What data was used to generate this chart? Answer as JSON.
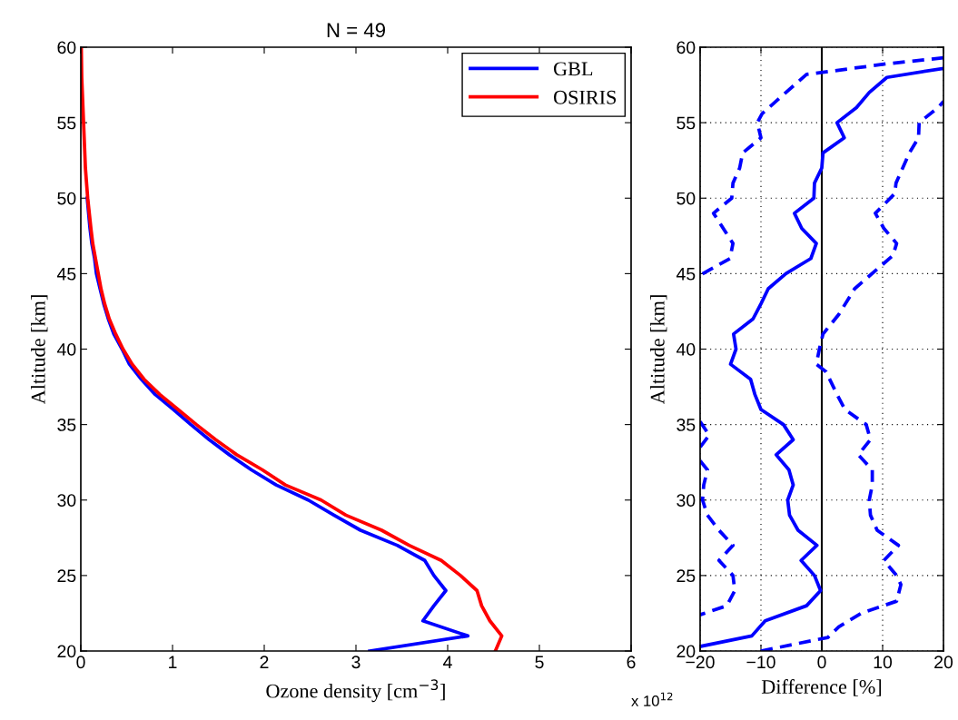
{
  "chart_data": [
    {
      "type": "line",
      "title": "N = 49",
      "xlabel": "Ozone density [cm$^{−3}$]",
      "ylabel": "Altitude [km]",
      "xlim": [
        0,
        6
      ],
      "xticks": [
        0,
        1,
        2,
        3,
        4,
        5,
        6
      ],
      "ylim": [
        20,
        60
      ],
      "yticks": [
        20,
        25,
        30,
        35,
        40,
        45,
        50,
        55,
        60
      ],
      "legend": "top right",
      "annotations": [
        "x 10$^{12}$"
      ],
      "series": [
        {
          "name": "GBL",
          "color": "#0000ff",
          "x": [
            3.15,
            4.22,
            3.73,
            3.85,
            3.98,
            3.85,
            3.75,
            3.45,
            3.05,
            2.76,
            2.48,
            2.13,
            1.86,
            1.62,
            1.4,
            1.2,
            1.01,
            0.81,
            0.66,
            0.53,
            0.45,
            0.36,
            0.3,
            0.25,
            0.21,
            0.17,
            0.15,
            0.12,
            0.1,
            0.07
          ],
          "values": [
            20,
            21,
            22,
            23,
            24,
            25,
            26,
            27,
            28,
            29,
            30,
            31,
            32,
            33,
            34,
            35,
            36,
            37,
            38,
            39,
            40,
            41,
            42,
            43,
            44,
            45,
            46,
            47,
            48,
            50
          ]
        },
        {
          "name": "OSIRIS",
          "color": "#ff0000",
          "x": [
            4.52,
            4.59,
            4.46,
            4.37,
            4.32,
            4.14,
            3.93,
            3.58,
            3.28,
            2.89,
            2.62,
            2.23,
            1.98,
            1.7,
            1.47,
            1.26,
            1.06,
            0.86,
            0.69,
            0.56,
            0.46,
            0.38,
            0.31,
            0.26,
            0.22,
            0.19,
            0.16,
            0.13,
            0.11,
            0.075,
            0.05,
            0.03,
            0.01,
            0.005
          ],
          "values": [
            20,
            21,
            22,
            23,
            24,
            25,
            26,
            27,
            28,
            29,
            30,
            31,
            32,
            33,
            34,
            35,
            36,
            37,
            38,
            39,
            40,
            41,
            42,
            43,
            44,
            45,
            46,
            47,
            48,
            50,
            52,
            55,
            58,
            60
          ]
        }
      ]
    },
    {
      "type": "line",
      "xlabel": "Difference [%]",
      "ylabel": "Altitude [km]",
      "xlim": [
        -20,
        20
      ],
      "xticks": [
        {
          "value": -20,
          "label": "−20"
        },
        {
          "value": -10,
          "label": "−10"
        },
        0,
        10,
        20
      ],
      "ylim": [
        20,
        60
      ],
      "yticks": [
        20,
        25,
        30,
        35,
        40,
        45,
        50,
        55,
        60
      ],
      "grid": true,
      "ref_lines": [
        {
          "axis": "x",
          "value": 0,
          "color": "#000000"
        }
      ],
      "series": [
        {
          "color": "#0000ff",
          "line_style": "solid",
          "x": [
            -20,
            -11.5,
            -9.3,
            -2.5,
            -0.2,
            -1.2,
            -3.4,
            -0.8,
            -3.9,
            -5.3,
            -5.6,
            -4.7,
            -5.4,
            -7.5,
            -4.7,
            -6.3,
            -10,
            -11,
            -11.7,
            -15,
            -14.1,
            -14.5,
            -11.3,
            -10,
            -8.8,
            -5.9,
            -1.8,
            -0.9,
            -3.3,
            -4.5,
            -1.3,
            -1.2,
            0,
            0.2,
            3.7,
            2.5,
            5.7,
            7.8,
            10.7,
            20
          ],
          "values": [
            20.3,
            21,
            22,
            23,
            24,
            25,
            26,
            27,
            28,
            29,
            30,
            31,
            32,
            33,
            34,
            35,
            36,
            37,
            38,
            39,
            40,
            41,
            42,
            43,
            44,
            45,
            46,
            47,
            48,
            49,
            50,
            51,
            52,
            53,
            54,
            55,
            56,
            57,
            58,
            58.6
          ]
        },
        {
          "color": "#0000ff",
          "line_style": "dashed",
          "x": [
            20,
            10.7,
            -2.5,
            -5.9,
            -9.8,
            -10.6,
            -10,
            -13,
            -13.5,
            -14.6,
            -14.8,
            -17.8,
            -14.6,
            -15.1,
            -20,
            null,
            -20,
            -18.5,
            -20,
            null,
            -20,
            -18.8,
            -19.4,
            -19.6,
            -18.8,
            -16.9,
            -14.6,
            -16.9,
            -14.6,
            -14.3,
            -15.6,
            -20
          ],
          "values": [
            59.3,
            58.9,
            58.2,
            57,
            55.6,
            55,
            54,
            53,
            52,
            51,
            50,
            49,
            47,
            46,
            44.9,
            null,
            35.2,
            34.3,
            33.5,
            null,
            32.6,
            32,
            31,
            30,
            29,
            28,
            27,
            26,
            25,
            24,
            23,
            22.4
          ]
        },
        {
          "color": "#0000ff",
          "line_style": "dashed",
          "x": [
            -10,
            1,
            2.8,
            6.5,
            12.3,
            13,
            12.3,
            10.2,
            12.6,
            9.1,
            8,
            7.8,
            8.3,
            8.3,
            6,
            8,
            7.3,
            3.8,
            2.5,
            0.7,
            -0.9,
            -0.4,
            0.2,
            2.8,
            5.4,
            9.4,
            11.7,
            12.3,
            10.2,
            8.8,
            12,
            12.2,
            13.3,
            14.4,
            15.9,
            16,
            19.1,
            20
          ],
          "values": [
            20,
            20.9,
            21.6,
            22.5,
            23.3,
            24.4,
            25,
            26,
            27,
            28,
            29,
            30,
            31,
            32,
            33,
            34,
            35,
            36,
            37,
            38.5,
            39,
            40,
            41,
            42.3,
            44,
            45.4,
            46.2,
            47,
            48,
            49,
            50.3,
            51,
            52,
            53,
            54,
            55,
            56,
            56.4
          ]
        }
      ]
    }
  ]
}
